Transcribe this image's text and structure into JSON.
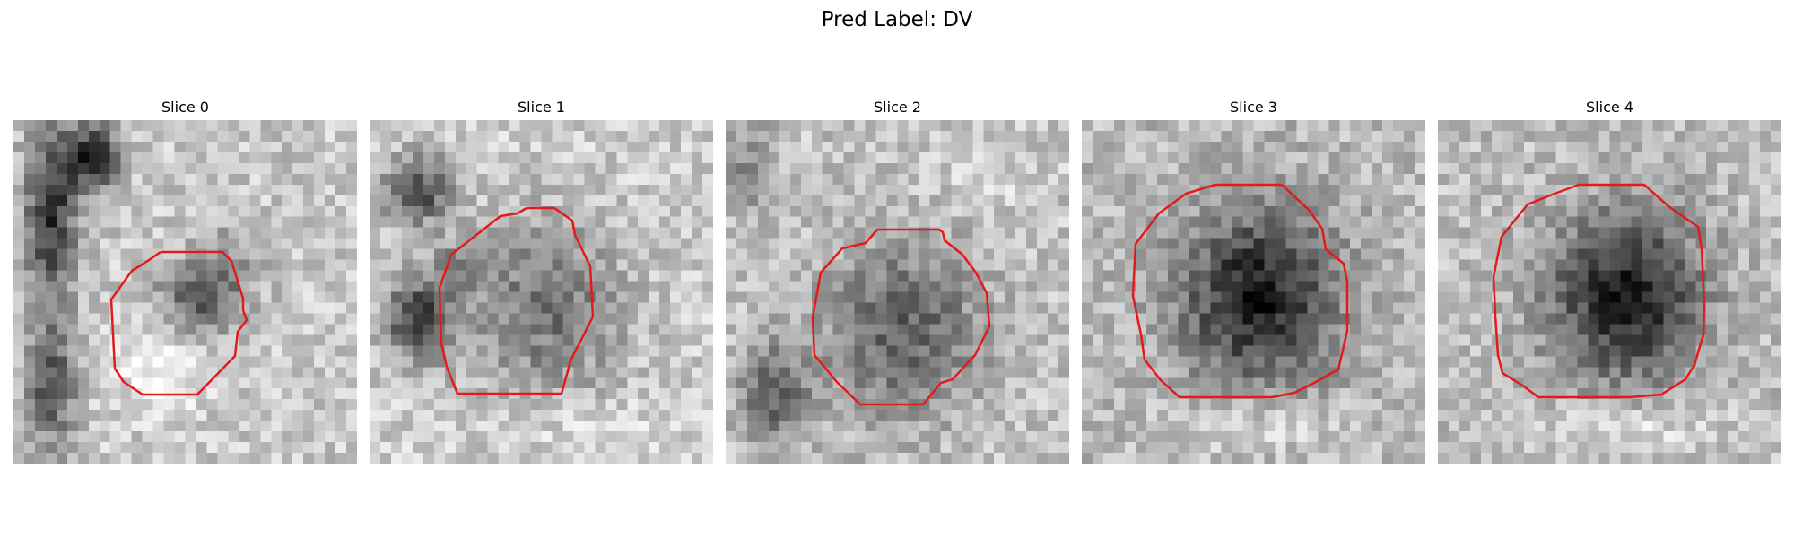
{
  "title": "Pred Label: DV",
  "slices": [
    {
      "label": "Slice 0"
    },
    {
      "label": "Slice 1"
    },
    {
      "label": "Slice 2"
    },
    {
      "label": "Slice 3"
    },
    {
      "label": "Slice 4"
    }
  ],
  "colors": {
    "contour": "#e31a1c",
    "background": "#ffffff"
  }
}
